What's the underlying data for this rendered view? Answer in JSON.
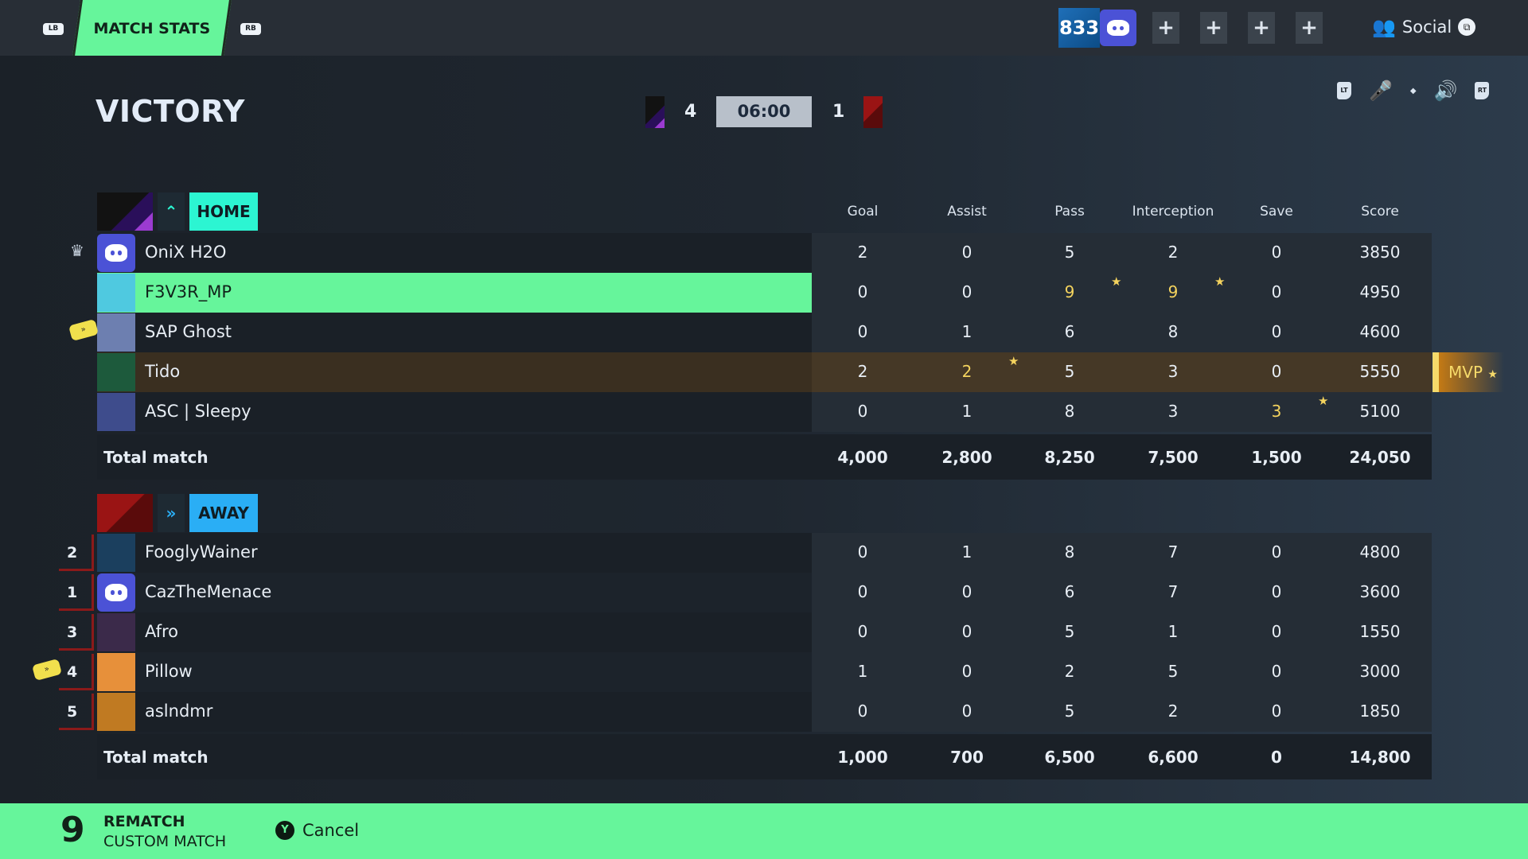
{
  "topbar": {
    "lb": "LB",
    "rb": "RB",
    "tab": "MATCH STATS",
    "level": "833",
    "social": "Social",
    "plus": "+"
  },
  "header": {
    "result": "VICTORY",
    "home_score": "4",
    "away_score": "1",
    "timer": "06:00",
    "lt": "LT",
    "rt": "RT"
  },
  "colors": {
    "accent": "#66f59b",
    "home": "#2cf5d2",
    "away": "#2aaef5",
    "highlight": "#f4d35e",
    "selected_row": "#66f59b",
    "mvp_row": "#3a2f20"
  },
  "columns": [
    "Goal",
    "Assist",
    "Pass",
    "Interception",
    "Save",
    "Score"
  ],
  "home": {
    "label": "HOME",
    "players": [
      {
        "name": "OniX H2O",
        "stats": [
          "2",
          "0",
          "5",
          "2",
          "0",
          "3850"
        ],
        "avatar": "discord",
        "selected": true,
        "side": "party-leader-icon"
      },
      {
        "name": "F3V3R_MP",
        "stats": [
          "0",
          "0",
          "9",
          "9",
          "0",
          "4950"
        ],
        "avatar": "palm",
        "highlight": true,
        "stars": [
          2,
          3
        ]
      },
      {
        "name": "SAP Ghost",
        "stats": [
          "0",
          "1",
          "6",
          "8",
          "0",
          "4600"
        ],
        "avatar": "cat",
        "side": "captain-band-icon"
      },
      {
        "name": "Tido",
        "stats": [
          "2",
          "2",
          "5",
          "3",
          "0",
          "5550"
        ],
        "avatar": "ball",
        "mvp": true,
        "stars": [
          1
        ]
      },
      {
        "name": "ASC | Sleepy",
        "stats": [
          "0",
          "1",
          "8",
          "3",
          "3",
          "5100"
        ],
        "avatar": "gloves",
        "stars": [
          4
        ]
      }
    ],
    "total_label": "Total match",
    "totals": [
      "4,000",
      "2,800",
      "8,250",
      "7,500",
      "1,500",
      "24,050"
    ]
  },
  "away": {
    "label": "AWAY",
    "players": [
      {
        "name": "FooglyWainer",
        "rank": "2",
        "stats": [
          "0",
          "1",
          "8",
          "7",
          "0",
          "4800"
        ],
        "avatar": "peacock"
      },
      {
        "name": "CazTheMenace",
        "rank": "1",
        "stats": [
          "0",
          "0",
          "6",
          "7",
          "0",
          "3600"
        ],
        "avatar": "discord"
      },
      {
        "name": "Afro",
        "rank": "3",
        "stats": [
          "0",
          "0",
          "5",
          "1",
          "0",
          "1550"
        ],
        "avatar": "tiger"
      },
      {
        "name": "Pillow",
        "rank": "4",
        "stats": [
          "1",
          "0",
          "2",
          "5",
          "0",
          "3000"
        ],
        "avatar": "dog",
        "side": "captain-band-icon"
      },
      {
        "name": "aslndmr",
        "rank": "5",
        "stats": [
          "0",
          "0",
          "5",
          "2",
          "0",
          "1850"
        ],
        "avatar": "lion"
      }
    ],
    "total_label": "Total match",
    "totals": [
      "1,000",
      "700",
      "6,500",
      "6,600",
      "0",
      "14,800"
    ]
  },
  "mvp": {
    "label": "MVP"
  },
  "footer": {
    "countdown": "9",
    "rematch": "REMATCH",
    "mode": "CUSTOM MATCH",
    "y": "Y",
    "cancel": "Cancel"
  }
}
